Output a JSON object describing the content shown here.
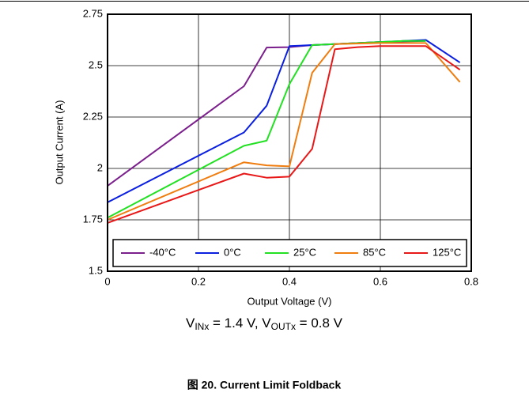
{
  "chart_data": {
    "type": "line",
    "xlabel": "Output Voltage (V)",
    "ylabel": "Output Current (A)",
    "annotation": [
      "V",
      "INx",
      " = 1.4 V, V",
      "OUTx",
      " = 0.8 V"
    ],
    "caption": "图 20. Current Limit Foldback",
    "xlim": [
      0,
      0.8
    ],
    "xticks": [
      0,
      0.2,
      0.4,
      0.6,
      0.8
    ],
    "ylim": [
      1.5,
      2.75
    ],
    "yticks": [
      1.5,
      1.75,
      2,
      2.25,
      2.5,
      2.75
    ],
    "grid": true,
    "legend": "bottom",
    "series": [
      {
        "name": "-40°C",
        "color": "#7b1f8c",
        "x": [
          0,
          0.3,
          0.35,
          0.4,
          0.45,
          0.5,
          0.6,
          0.7
        ],
        "values": [
          1.915,
          2.4,
          2.588,
          2.59,
          2.6,
          2.605,
          2.615,
          2.62
        ]
      },
      {
        "name": "0°C",
        "color": "#0a1fe0",
        "x": [
          0,
          0.3,
          0.35,
          0.4,
          0.45,
          0.5,
          0.6,
          0.7,
          0.775
        ],
        "values": [
          1.835,
          2.175,
          2.305,
          2.595,
          2.6,
          2.605,
          2.615,
          2.625,
          2.515
        ]
      },
      {
        "name": "25°C",
        "color": "#22e022",
        "x": [
          0,
          0.3,
          0.35,
          0.4,
          0.45,
          0.5,
          0.6,
          0.65,
          0.7
        ],
        "values": [
          1.76,
          2.11,
          2.135,
          2.41,
          2.6,
          2.605,
          2.615,
          2.62,
          2.62
        ]
      },
      {
        "name": "85°C",
        "color": "#f07d10",
        "x": [
          0,
          0.3,
          0.35,
          0.4,
          0.45,
          0.5,
          0.6,
          0.7,
          0.775
        ],
        "values": [
          1.75,
          2.03,
          2.015,
          2.01,
          2.465,
          2.605,
          2.61,
          2.61,
          2.42
        ]
      },
      {
        "name": "125°C",
        "color": "#e81818",
        "x": [
          0,
          0.3,
          0.35,
          0.4,
          0.45,
          0.5,
          0.55,
          0.6,
          0.7,
          0.775
        ],
        "values": [
          1.735,
          1.975,
          1.955,
          1.96,
          2.095,
          2.58,
          2.59,
          2.595,
          2.595,
          2.48
        ]
      }
    ]
  }
}
